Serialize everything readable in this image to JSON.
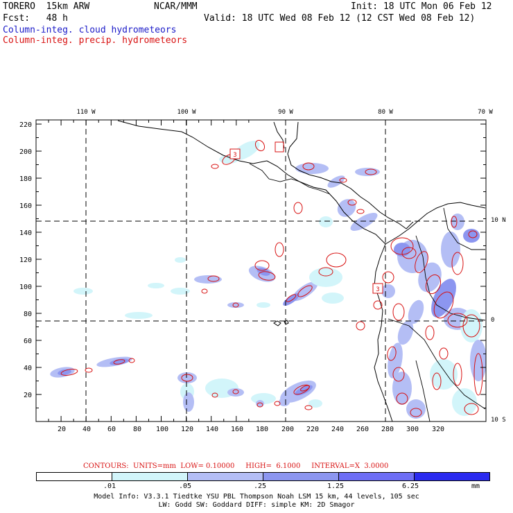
{
  "header": {
    "model": "TORERO  15km ARW",
    "center": "NCAR/MMM",
    "init": "Init: 18 UTC Mon 06 Feb 12",
    "fcst": "Fcst:   48 h",
    "valid": "Valid: 18 UTC Wed 08 Feb 12 (12 CST Wed 08 Feb 12)",
    "field1": "Column-integ. cloud hydrometeors",
    "field2": "Column-integ. precip. hydrometeors"
  },
  "colors": {
    "field1": "#1a1ac8",
    "field2": "#d81010",
    "shade": [
      "#ffffff",
      "#d2f5fa",
      "#b4bef5",
      "#8c96f0",
      "#6e6ef5",
      "#2a2af0"
    ]
  },
  "axes": {
    "y_ticks": [
      "220",
      "200",
      "180",
      "160",
      "140",
      "120",
      "100",
      "80",
      "60",
      "40",
      "20"
    ],
    "x_ticks": [
      "20",
      "40",
      "60",
      "80",
      "100",
      "120",
      "140",
      "160",
      "180",
      "200",
      "220",
      "240",
      "260",
      "280",
      "300",
      "320"
    ],
    "lon_labels": [
      "110 W",
      "100 W",
      "90 W",
      "80 W",
      "70 W"
    ],
    "lat_labels": [
      "10 N",
      "0",
      "10 S"
    ]
  },
  "contours": {
    "label": "CONTOURS:  UNITS=mm  LOW= 0.10000     HIGH=  6.1000     INTERVAL=X  3.0000",
    "marker_value": "3"
  },
  "colorbar": {
    "labels": [
      ".01",
      ".05",
      ".25",
      "1.25",
      "6.25"
    ],
    "units": "mm"
  },
  "model_info": {
    "line1": "Model Info: V3.3.1    Tiedtke YSU PBL  Thompson     Noah LSM  15 km,   44 levels,  105 sec",
    "line2": "LW: Godd SW: Goddard DIFF: simple KM: 2D Smagor"
  }
}
